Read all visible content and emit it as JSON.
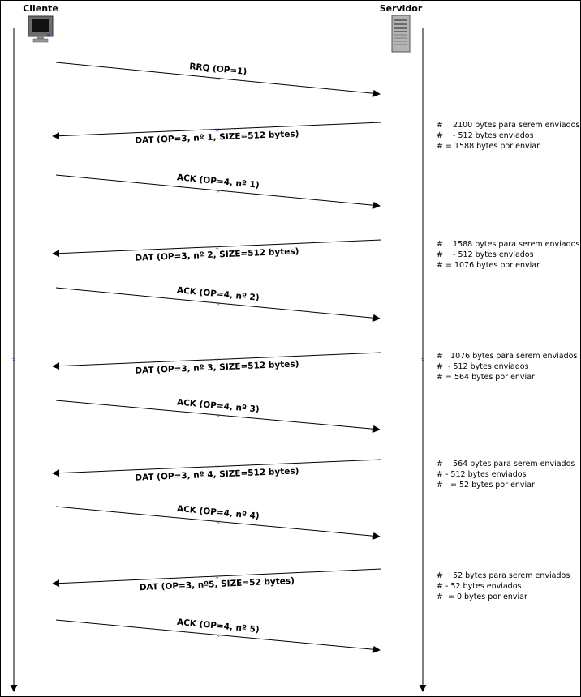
{
  "header": {
    "client": "Cliente",
    "server": "Servidor"
  },
  "messages": [
    {
      "label": "RRQ (OP=1)",
      "direction": "to-server"
    },
    {
      "label": "DAT (OP=3, nº 1, SIZE=512 bytes)",
      "direction": "to-client"
    },
    {
      "label": "ACK (OP=4, nº 1)",
      "direction": "to-server"
    },
    {
      "label": "DAT (OP=3, nº 2, SIZE=512 bytes)",
      "direction": "to-client"
    },
    {
      "label": "ACK (OP=4, nº 2)",
      "direction": "to-server"
    },
    {
      "label": "DAT (OP=3, nº 3, SIZE=512 bytes)",
      "direction": "to-client"
    },
    {
      "label": "ACK (OP=4, nº 3)",
      "direction": "to-server"
    },
    {
      "label": "DAT (OP=3, nº 4, SIZE=512 bytes)",
      "direction": "to-client"
    },
    {
      "label": "ACK (OP=4, nº 4)",
      "direction": "to-server"
    },
    {
      "label": "DAT (OP=3, nº5, SIZE=52 bytes)",
      "direction": "to-client"
    },
    {
      "label": "ACK (OP=4, nº 5)",
      "direction": "to-server"
    }
  ],
  "notes": [
    [
      "#    2100 bytes para serem enviados",
      "#    - 512 bytes enviados",
      "# = 1588 bytes por enviar"
    ],
    [
      "#    1588 bytes para serem enviados",
      "#    - 512 bytes enviados",
      "# = 1076 bytes por enviar"
    ],
    [
      "#   1076 bytes para serem enviados",
      "#  - 512 bytes enviados",
      "# = 564 bytes por enviar"
    ],
    [
      "#    564 bytes para serem enviados",
      "# - 512 bytes enviados",
      "#   = 52 bytes por enviar"
    ],
    [
      "#    52 bytes para serem enviados",
      "# - 52 bytes enviados",
      "#  = 0 bytes por enviar"
    ]
  ]
}
